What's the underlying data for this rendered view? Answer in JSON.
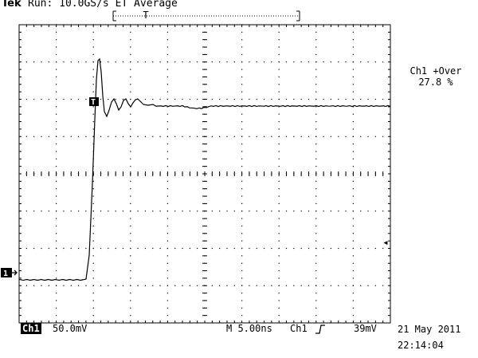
{
  "header": {
    "brand": "Tek",
    "status": "Run: 10.0GS/s ET Average",
    "trigger_position_marker": "T"
  },
  "measurement": {
    "label": "Ch1 +Over",
    "value": "27.8 %"
  },
  "waveform": {
    "channel_marker": "1",
    "trigger_marker": "T",
    "trigger_level_marker": "◂"
  },
  "status_bar": {
    "channel_badge": "Ch1",
    "volts_per_div": "50.0mV",
    "timebase": "M 5.00ns",
    "trigger_source": "Ch1",
    "trigger_slope_icon": "rising-edge-icon",
    "trigger_level": "39mV",
    "date": "21 May 2011",
    "time": "22:14:04"
  }
}
